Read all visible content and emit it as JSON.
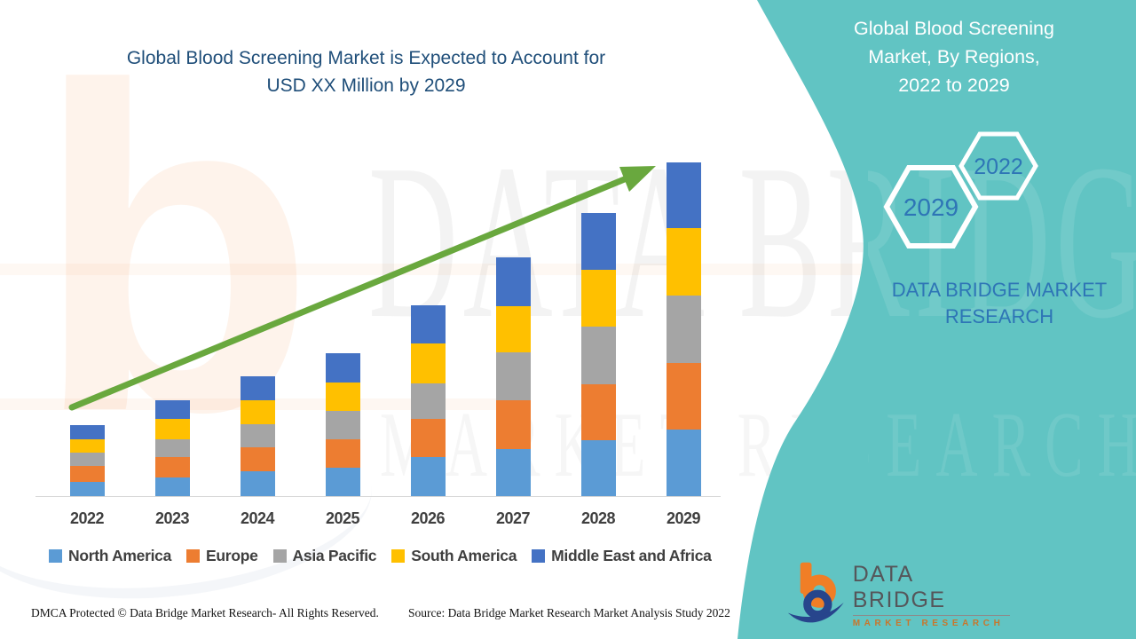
{
  "colors": {
    "teal": "#61C4C3",
    "title_navy": "#1F4E79",
    "accent_blue": "#2E75B6",
    "label_gray": "#3F3F3F",
    "arrow_green": "#69A83E",
    "axis_line": "#D6D6D6"
  },
  "chart_data": {
    "type": "bar",
    "stacked": true,
    "title": "Global Blood Screening Market is Expected to Account for USD XX Million by 2029",
    "title_lines": [
      "Global Blood Screening Market is Expected to Account for",
      "USD XX Million by 2029"
    ],
    "categories": [
      "2022",
      "2023",
      "2024",
      "2025",
      "2026",
      "2027",
      "2028",
      "2029"
    ],
    "series": [
      {
        "name": "North America",
        "color": "#5B9BD5",
        "values": [
          16,
          21,
          28,
          32,
          44,
          53,
          63,
          75
        ]
      },
      {
        "name": "Europe",
        "color": "#ED7D31",
        "values": [
          18,
          23,
          27,
          32,
          43,
          55,
          63,
          75
        ]
      },
      {
        "name": "Asia Pacific",
        "color": "#A5A5A5",
        "values": [
          15,
          20,
          26,
          32,
          40,
          54,
          65,
          76
        ]
      },
      {
        "name": "South America",
        "color": "#FFC000",
        "values": [
          15,
          23,
          27,
          32,
          45,
          52,
          64,
          76
        ]
      },
      {
        "name": "Middle East and Africa",
        "color": "#4472C4",
        "values": [
          16,
          21,
          27,
          33,
          43,
          55,
          64,
          74
        ]
      }
    ],
    "units": "relative height (value axis not shown; market sized as USD XX Million)",
    "value_axis_visible": false,
    "grid": false,
    "legend_position": "bottom",
    "trend_arrow": true
  },
  "right_panel": {
    "title_lines": [
      "Global Blood Screening",
      "Market, By Regions,",
      "2022 to 2029"
    ],
    "hexagons": [
      {
        "label": "2029"
      },
      {
        "label": "2022"
      }
    ],
    "brand_lines": [
      "DATA BRIDGE MARKET",
      "RESEARCH"
    ]
  },
  "logo": {
    "name": "DATA BRIDGE",
    "subtitle": "MARKET RESEARCH"
  },
  "watermark": {
    "row1": "DATA BRIDGE",
    "row2": "MARKET RESEARCH",
    "letter": "b"
  },
  "footer": {
    "dmca": "DMCA Protected © Data Bridge Market Research- All Rights Reserved.",
    "source": "Source: Data Bridge Market Research Market Analysis Study 2022"
  }
}
